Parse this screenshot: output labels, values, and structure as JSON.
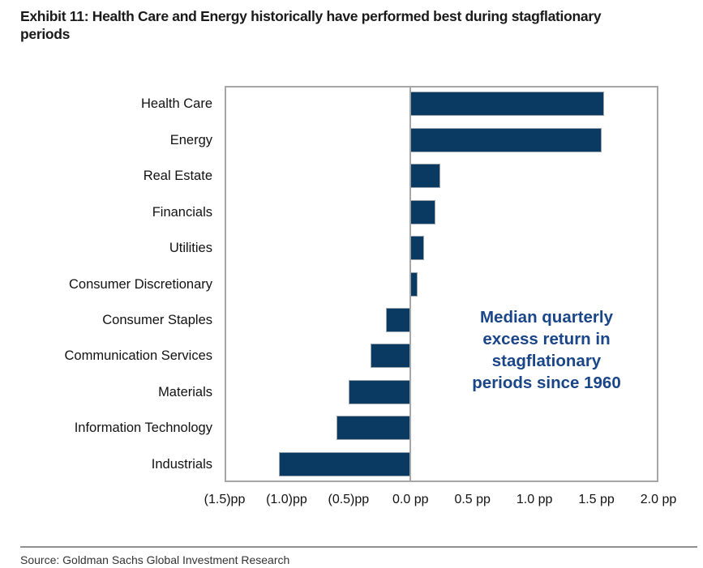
{
  "page": {
    "title": "Exhibit 11: Health Care and Energy historically have performed best during stagflationary periods",
    "title_lines": [
      "Exhibit 11: Health Care and Energy historically have performed best during stagflationary",
      "periods"
    ],
    "source": "Source: Goldman Sachs Global Investment Research"
  },
  "colors": {
    "bar_fill": "#0a3a62",
    "bar_outline": "#9aa4ad",
    "axis_line": "#a6a6a6",
    "annotation_text": "#1a4688",
    "title_text": "#1a1a1a",
    "label_text": "#111111",
    "source_text": "#333333"
  },
  "chart_data": {
    "type": "bar",
    "orientation": "horizontal",
    "title": "Exhibit 11: Health Care and Energy historically have performed best during stagflationary periods",
    "unit": "pp",
    "categories": [
      "Health Care",
      "Energy",
      "Real Estate",
      "Financials",
      "Utilities",
      "Consumer Discretionary",
      "Consumer Staples",
      "Communication Services",
      "Materials",
      "Information Technology",
      "Industrials"
    ],
    "values": [
      1.56,
      1.54,
      0.24,
      0.2,
      0.11,
      0.06,
      -0.2,
      -0.32,
      -0.5,
      -0.6,
      -1.06
    ],
    "xlim": [
      -1.5,
      2.0
    ],
    "x_tick_values": [
      -1.5,
      -1.0,
      -0.5,
      0.0,
      0.5,
      1.0,
      1.5,
      2.0
    ],
    "x_tick_labels": [
      "(1.5)pp",
      "(1.0)pp",
      "(0.5)pp",
      "0.0 pp",
      "0.5 pp",
      "1.0 pp",
      "1.5 pp",
      "2.0 pp"
    ],
    "grid": false,
    "legend": "none",
    "annotation": "Median quarterly excess return in stagflationary periods since 1960",
    "annotation_lines": [
      "Median quarterly",
      "excess return in",
      "stagflationary",
      "periods since 1960"
    ]
  }
}
